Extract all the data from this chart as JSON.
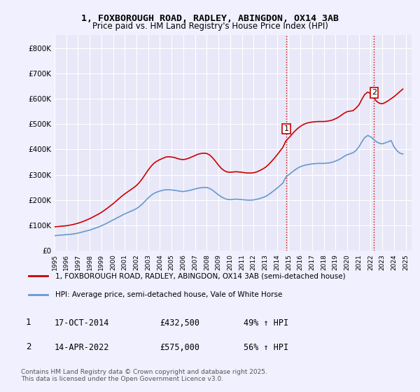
{
  "title_line1": "1, FOXBOROUGH ROAD, RADLEY, ABINGDON, OX14 3AB",
  "title_line2": "Price paid vs. HM Land Registry's House Price Index (HPI)",
  "ylabel_ticks": [
    "£0",
    "£100K",
    "£200K",
    "£300K",
    "£400K",
    "£500K",
    "£600K",
    "£700K",
    "£800K"
  ],
  "ytick_values": [
    0,
    100000,
    200000,
    300000,
    400000,
    500000,
    600000,
    700000,
    800000
  ],
  "ylim": [
    0,
    850000
  ],
  "xlim_start": 1995,
  "xlim_end": 2025.5,
  "xticks": [
    1995,
    1996,
    1997,
    1998,
    1999,
    2000,
    2001,
    2002,
    2003,
    2004,
    2005,
    2006,
    2007,
    2008,
    2009,
    2010,
    2011,
    2012,
    2013,
    2014,
    2015,
    2016,
    2017,
    2018,
    2019,
    2020,
    2021,
    2022,
    2023,
    2024,
    2025
  ],
  "background_color": "#f0f0ff",
  "plot_bg_color": "#e8e8f8",
  "grid_color": "#ffffff",
  "property_line_color": "#cc0000",
  "hpi_line_color": "#6699cc",
  "vline_color": "#cc0000",
  "vline_style": ":",
  "transaction1_x": 2014.8,
  "transaction1_y": 432500,
  "transaction1_label": "1",
  "transaction2_x": 2022.3,
  "transaction2_y": 575000,
  "transaction2_label": "2",
  "legend_line1": "1, FOXBOROUGH ROAD, RADLEY, ABINGDON, OX14 3AB (semi-detached house)",
  "legend_line2": "HPI: Average price, semi-detached house, Vale of White Horse",
  "table_row1": [
    "1",
    "17-OCT-2014",
    "£432,500",
    "49% ↑ HPI"
  ],
  "table_row2": [
    "2",
    "14-APR-2022",
    "£575,000",
    "56% ↑ HPI"
  ],
  "footer": "Contains HM Land Registry data © Crown copyright and database right 2025.\nThis data is licensed under the Open Government Licence v3.0.",
  "property_hpi_data": {
    "years": [
      1995.0,
      1995.25,
      1995.5,
      1995.75,
      1996.0,
      1996.25,
      1996.5,
      1996.75,
      1997.0,
      1997.25,
      1997.5,
      1997.75,
      1998.0,
      1998.25,
      1998.5,
      1998.75,
      1999.0,
      1999.25,
      1999.5,
      1999.75,
      2000.0,
      2000.25,
      2000.5,
      2000.75,
      2001.0,
      2001.25,
      2001.5,
      2001.75,
      2002.0,
      2002.25,
      2002.5,
      2002.75,
      2003.0,
      2003.25,
      2003.5,
      2003.75,
      2004.0,
      2004.25,
      2004.5,
      2004.75,
      2005.0,
      2005.25,
      2005.5,
      2005.75,
      2006.0,
      2006.25,
      2006.5,
      2006.75,
      2007.0,
      2007.25,
      2007.5,
      2007.75,
      2008.0,
      2008.25,
      2008.5,
      2008.75,
      2009.0,
      2009.25,
      2009.5,
      2009.75,
      2010.0,
      2010.25,
      2010.5,
      2010.75,
      2011.0,
      2011.25,
      2011.5,
      2011.75,
      2012.0,
      2012.25,
      2012.5,
      2012.75,
      2013.0,
      2013.25,
      2013.5,
      2013.75,
      2014.0,
      2014.25,
      2014.5,
      2014.75,
      2015.0,
      2015.25,
      2015.5,
      2015.75,
      2016.0,
      2016.25,
      2016.5,
      2016.75,
      2017.0,
      2017.25,
      2017.5,
      2017.75,
      2018.0,
      2018.25,
      2018.5,
      2018.75,
      2019.0,
      2019.25,
      2019.5,
      2019.75,
      2020.0,
      2020.25,
      2020.5,
      2020.75,
      2021.0,
      2021.25,
      2021.5,
      2021.75,
      2022.0,
      2022.25,
      2022.5,
      2022.75,
      2023.0,
      2023.25,
      2023.5,
      2023.75,
      2024.0,
      2024.25,
      2024.5,
      2024.75
    ],
    "property_values": [
      95000,
      96000,
      97000,
      98000,
      99000,
      101000,
      103000,
      106000,
      109000,
      113000,
      117000,
      122000,
      127000,
      133000,
      139000,
      145000,
      152000,
      160000,
      168000,
      177000,
      186000,
      196000,
      206000,
      216000,
      225000,
      233000,
      241000,
      249000,
      258000,
      270000,
      285000,
      302000,
      319000,
      334000,
      346000,
      354000,
      360000,
      365000,
      370000,
      371000,
      370000,
      368000,
      364000,
      361000,
      360000,
      362000,
      366000,
      371000,
      376000,
      381000,
      384000,
      385000,
      384000,
      378000,
      367000,
      353000,
      338000,
      325000,
      316000,
      311000,
      310000,
      311000,
      312000,
      311000,
      310000,
      308000,
      307000,
      307000,
      308000,
      311000,
      316000,
      322000,
      329000,
      339000,
      351000,
      364000,
      378000,
      393000,
      408000,
      432500,
      445000,
      458000,
      471000,
      482000,
      491000,
      498000,
      503000,
      506000,
      508000,
      509000,
      510000,
      510000,
      510000,
      511000,
      513000,
      516000,
      521000,
      527000,
      535000,
      543000,
      549000,
      551000,
      553000,
      563000,
      575000,
      598000,
      617000,
      626000,
      620000,
      605000,
      590000,
      582000,
      580000,
      585000,
      592000,
      600000,
      608000,
      618000,
      628000,
      638000
    ],
    "hpi_values": [
      60000,
      61000,
      62000,
      63000,
      64000,
      65000,
      66000,
      68000,
      70000,
      73000,
      76000,
      79000,
      82000,
      86000,
      90000,
      94000,
      99000,
      104000,
      110000,
      116000,
      122000,
      128000,
      134000,
      140000,
      146000,
      151000,
      156000,
      161000,
      167000,
      175000,
      185000,
      197000,
      209000,
      219000,
      227000,
      232000,
      236000,
      239000,
      241000,
      241000,
      240000,
      239000,
      237000,
      235000,
      234000,
      236000,
      238000,
      241000,
      244000,
      247000,
      249000,
      250000,
      250000,
      246000,
      239000,
      230000,
      221000,
      213000,
      207000,
      203000,
      202000,
      203000,
      204000,
      203000,
      202000,
      201000,
      200000,
      200000,
      201000,
      203000,
      206000,
      210000,
      214000,
      221000,
      229000,
      238000,
      247000,
      257000,
      267000,
      290000,
      300000,
      309000,
      318000,
      326000,
      332000,
      336000,
      339000,
      341000,
      343000,
      344000,
      345000,
      345000,
      345000,
      346000,
      347000,
      350000,
      354000,
      359000,
      365000,
      373000,
      379000,
      383000,
      387000,
      396000,
      410000,
      430000,
      447000,
      455000,
      450000,
      440000,
      430000,
      424000,
      422000,
      426000,
      430000,
      435000,
      410000,
      395000,
      385000,
      382000
    ]
  }
}
